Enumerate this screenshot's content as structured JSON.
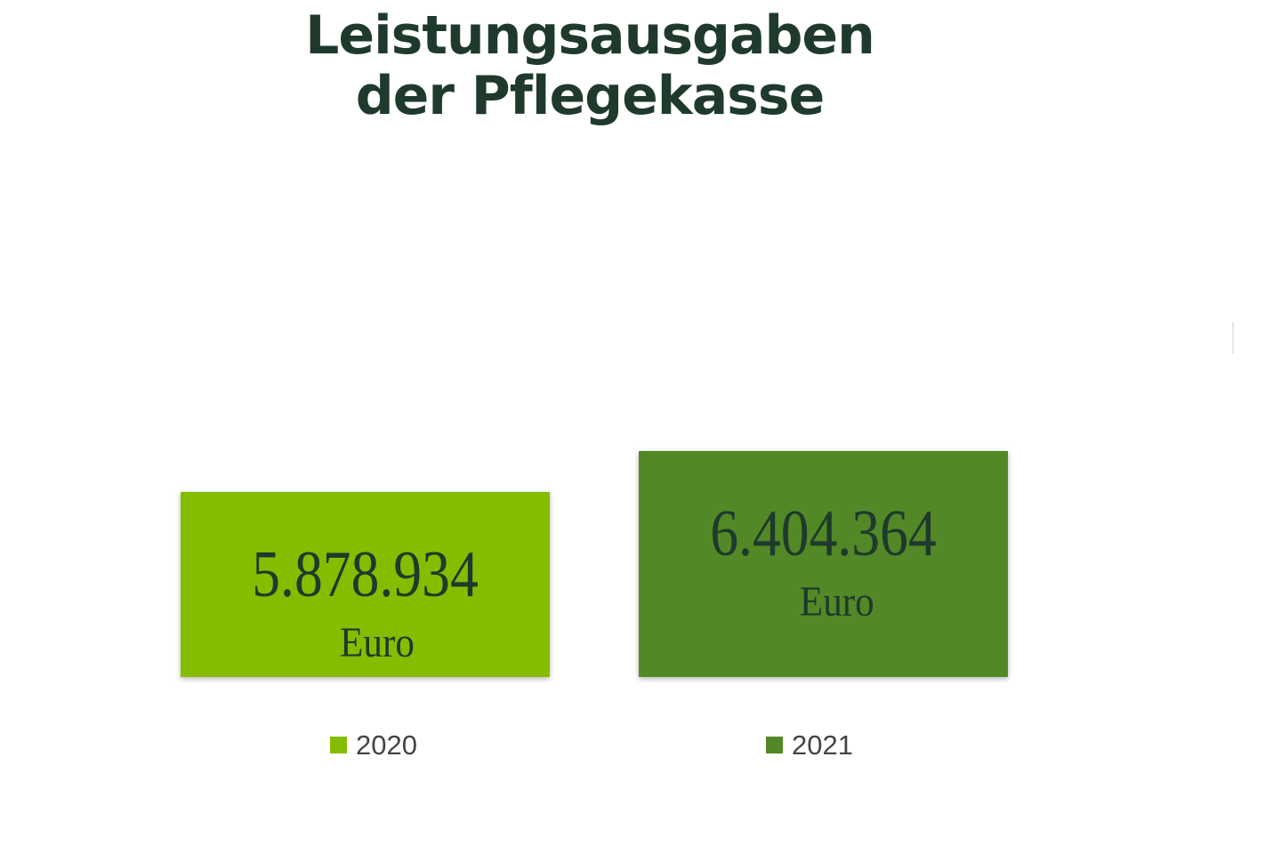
{
  "chart_data": {
    "type": "bar",
    "title": [
      "Leistungsausgaben",
      "der Pflegekasse"
    ],
    "categories": [
      "2020",
      "2021"
    ],
    "values": [
      5878934,
      6404364
    ],
    "data_labels": [
      "5.878.934",
      "6.404.364"
    ],
    "unit": "Euro",
    "colors": [
      "#86bc00",
      "#528826"
    ],
    "legend": [
      "2020",
      "2021"
    ],
    "legend_position": "bottom",
    "grid": false,
    "axes_visible": false,
    "xlabel": "",
    "ylabel": ""
  }
}
